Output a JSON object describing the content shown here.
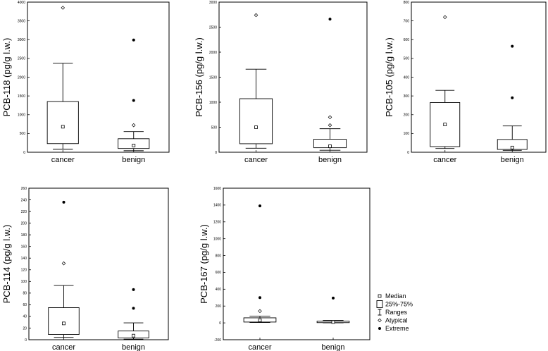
{
  "chart_data": [
    {
      "type": "boxplot",
      "ylabel": "PCB-118 (pg/g l.w.)",
      "ylim": [
        0,
        4000
      ],
      "yticks": [
        0,
        500,
        1000,
        1500,
        2000,
        2500,
        3000,
        3500,
        4000
      ],
      "categories": [
        "cancer",
        "benign"
      ],
      "boxes": [
        {
          "median": 680,
          "q1": 230,
          "q3": 1350,
          "min": 80,
          "max": 2370,
          "atypical": [
            3850
          ],
          "extreme": []
        },
        {
          "median": 180,
          "q1": 100,
          "q3": 360,
          "min": 40,
          "max": 550,
          "atypical": [
            720
          ],
          "extreme": [
            1380,
            2990
          ]
        }
      ]
    },
    {
      "type": "boxplot",
      "ylabel": "PCB-156 (pg/g l.w.)",
      "ylim": [
        0,
        3000
      ],
      "yticks": [
        0,
        500,
        1000,
        1500,
        2000,
        2500,
        3000
      ],
      "categories": [
        "cancer",
        "benign"
      ],
      "boxes": [
        {
          "median": 500,
          "q1": 170,
          "q3": 1070,
          "min": 80,
          "max": 1660,
          "atypical": [
            2740
          ],
          "extreme": []
        },
        {
          "median": 120,
          "q1": 90,
          "q3": 260,
          "min": 40,
          "max": 470,
          "atypical": [
            540,
            700
          ],
          "extreme": [
            2660
          ]
        }
      ]
    },
    {
      "type": "boxplot",
      "ylabel": "PCB-105 (pg/g l.w.)",
      "ylim": [
        0,
        800
      ],
      "yticks": [
        0,
        100,
        200,
        300,
        400,
        500,
        600,
        700,
        800
      ],
      "categories": [
        "cancer",
        "benign"
      ],
      "boxes": [
        {
          "median": 148,
          "q1": 30,
          "q3": 265,
          "min": 20,
          "max": 330,
          "atypical": [
            720
          ],
          "extreme": []
        },
        {
          "median": 25,
          "q1": 15,
          "q3": 68,
          "min": 10,
          "max": 140,
          "atypical": [],
          "extreme": [
            290,
            565
          ]
        }
      ]
    },
    {
      "type": "boxplot",
      "ylabel": "PCB-114 (pg/g l.w.)",
      "ylim": [
        0,
        260
      ],
      "yticks": [
        0,
        20,
        40,
        60,
        80,
        100,
        120,
        140,
        160,
        180,
        200,
        220,
        240,
        260
      ],
      "categories": [
        "cancer",
        "benign"
      ],
      "boxes": [
        {
          "median": 28,
          "q1": 9,
          "q3": 55,
          "min": 4,
          "max": 93,
          "atypical": [
            131
          ],
          "extreme": [
            236
          ]
        },
        {
          "median": 7,
          "q1": 3,
          "q3": 15,
          "min": 1,
          "max": 29,
          "atypical": [],
          "extreme": [
            54,
            86
          ]
        }
      ]
    },
    {
      "type": "boxplot",
      "ylabel": "PCB-167 (pg/g l.w.)",
      "ylim": [
        -200,
        1600
      ],
      "yticks": [
        -200,
        0,
        200,
        400,
        600,
        800,
        1000,
        1200,
        1400,
        1600
      ],
      "categories": [
        "cancer",
        "benign"
      ],
      "boxes": [
        {
          "median": 30,
          "q1": 10,
          "q3": 60,
          "min": 5,
          "max": 80,
          "atypical": [
            140
          ],
          "extreme": [
            300,
            1390
          ]
        },
        {
          "median": 10,
          "q1": 3,
          "q3": 20,
          "min": 1,
          "max": 30,
          "atypical": [],
          "extreme": [
            295
          ]
        }
      ]
    }
  ],
  "legend": {
    "items": [
      {
        "marker": "median",
        "label": "Median"
      },
      {
        "marker": "box",
        "label": "25%-75%"
      },
      {
        "marker": "range",
        "label": "Ranges"
      },
      {
        "marker": "atypical",
        "label": "Atypical"
      },
      {
        "marker": "extreme",
        "label": "Extreme"
      }
    ]
  }
}
